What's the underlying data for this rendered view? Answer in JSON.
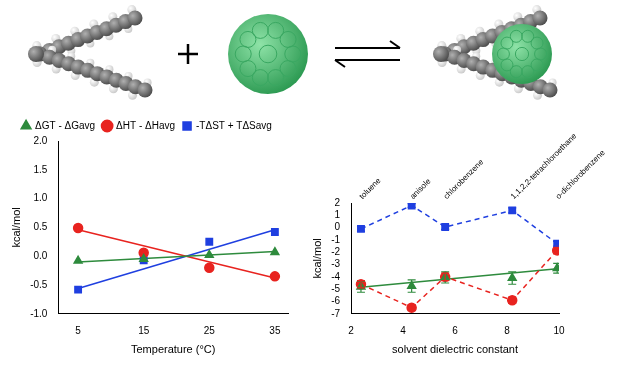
{
  "chart_data": [
    {
      "type": "scatter",
      "x_label": "Temperature (°C)",
      "y_label": "kcal/mol",
      "x": [
        5,
        15,
        25,
        35
      ],
      "series": [
        {
          "name": "ΔGT - ΔGavg",
          "color": "#2e8b3d",
          "marker": "triangle",
          "values": [
            -0.08,
            -0.05,
            0.02,
            0.07
          ],
          "trend": [
            -0.1,
            0.08
          ]
        },
        {
          "name": "ΔHT - ΔHavg",
          "color": "#e8231f",
          "marker": "circle",
          "values": [
            0.49,
            0.06,
            -0.2,
            -0.35
          ],
          "trend": [
            0.46,
            -0.38
          ]
        },
        {
          "name": "-TΔST + TΔSavg",
          "color": "#1f3fe0",
          "marker": "square",
          "values": [
            -0.58,
            -0.07,
            0.25,
            0.42
          ],
          "trend": [
            -0.56,
            0.46
          ]
        }
      ],
      "xlim": [
        2,
        37
      ],
      "xticks": [
        5,
        15,
        25,
        35
      ],
      "ylim": [
        -1,
        2
      ],
      "yticks": [
        {
          "value": -1,
          "label": "-1.0"
        },
        {
          "value": -0.5,
          "label": "-0.5"
        },
        {
          "value": 0,
          "label": "0.0"
        },
        {
          "value": 0.5,
          "label": "0.5"
        },
        {
          "value": 1,
          "label": "1.0"
        },
        {
          "value": 1.5,
          "label": "1.5"
        },
        {
          "value": 2,
          "label": "2.0"
        }
      ],
      "grid": false,
      "legend": "top"
    },
    {
      "type": "scatter",
      "x_label": "solvent dielectric constant",
      "y_label": "kcal/mol",
      "x": [
        2.38,
        4.33,
        5.62,
        8.2,
        9.93
      ],
      "annotations": [
        {
          "x": 2.38,
          "text": "toluene"
        },
        {
          "x": 4.33,
          "text": "anisole"
        },
        {
          "x": 5.62,
          "text": "chlorobenzene"
        },
        {
          "x": 8.2,
          "text": "1,1,2,2-tetrachloroethane"
        },
        {
          "x": 9.93,
          "text": "o-dichlorobenzene"
        }
      ],
      "series": [
        {
          "color": "#2e8b3d",
          "marker": "triangle",
          "values": [
            -4.8,
            -4.75,
            -4.05,
            -4.1,
            -3.3
          ],
          "errors": [
            0.45,
            0.5,
            0.45,
            0.5,
            0.4
          ],
          "trend": [
            -4.85,
            -3.35
          ]
        },
        {
          "color": "#e8231f",
          "marker": "circle",
          "line_style": "dashed",
          "values": [
            -4.6,
            -6.5,
            -4.0,
            -5.9,
            -1.85
          ],
          "errors": [
            0.3,
            0.25,
            0.3,
            0.25,
            0.25
          ]
        },
        {
          "color": "#1f3fe0",
          "marker": "square",
          "line_style": "dashed",
          "values": [
            -0.1,
            1.8,
            0.05,
            1.4,
            -1.3
          ],
          "errors": [
            0.2,
            0.15,
            0.2,
            0.2,
            0.2
          ]
        }
      ],
      "xlim": [
        2,
        10
      ],
      "xticks": [
        2,
        4,
        6,
        8,
        10
      ],
      "ylim": [
        -7,
        2
      ],
      "yticks": [
        -7,
        -6,
        -5,
        -4,
        -3,
        -2,
        -1,
        0,
        1,
        2
      ],
      "grid": false
    }
  ]
}
